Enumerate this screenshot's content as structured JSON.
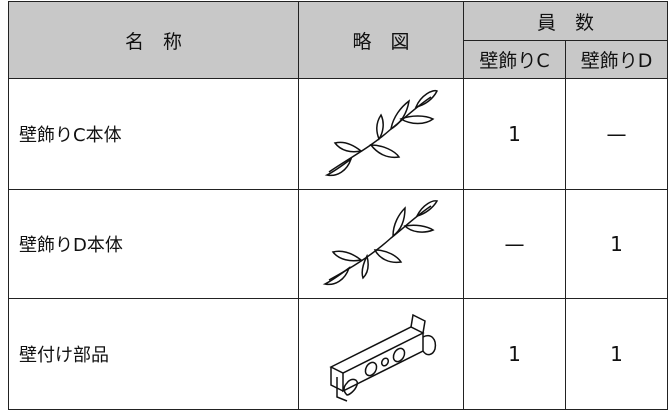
{
  "table": {
    "header": {
      "name": "名　称",
      "figure": "略　図",
      "count": "員　数",
      "col_c": "壁飾りC",
      "col_d": "壁飾りD"
    },
    "rows": [
      [
        "壁飾りC本体",
        "1",
        "—"
      ],
      [
        "壁飾りD本体",
        "—",
        "1"
      ],
      [
        "壁付け部品",
        "1",
        "1"
      ]
    ]
  }
}
